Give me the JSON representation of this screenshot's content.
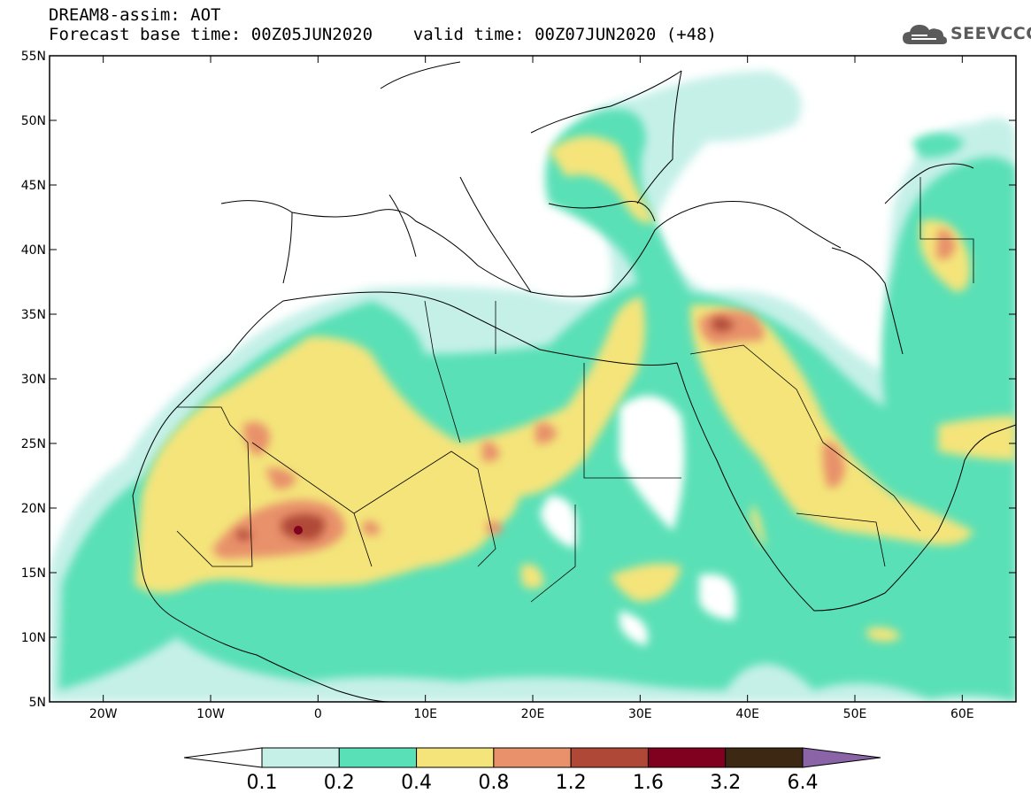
{
  "header": {
    "line1": "DREAM8-assim: AOT",
    "line2": "Forecast base time: 00Z05JUN2020    valid time: 00Z07JUN2020 (+48)"
  },
  "logo": {
    "text": "SEEVCCC",
    "icon": "cloud-icon"
  },
  "map": {
    "lon_range": [
      -25,
      65
    ],
    "lat_range": [
      5,
      55
    ],
    "lon_ticks": [
      {
        "value": -20,
        "label": "20W"
      },
      {
        "value": -10,
        "label": "10W"
      },
      {
        "value": 0,
        "label": "0"
      },
      {
        "value": 10,
        "label": "10E"
      },
      {
        "value": 20,
        "label": "20E"
      },
      {
        "value": 30,
        "label": "30E"
      },
      {
        "value": 40,
        "label": "40E"
      },
      {
        "value": 50,
        "label": "50E"
      },
      {
        "value": 60,
        "label": "60E"
      }
    ],
    "lat_ticks": [
      {
        "value": 55,
        "label": "55N"
      },
      {
        "value": 50,
        "label": "50N"
      },
      {
        "value": 45,
        "label": "45N"
      },
      {
        "value": 40,
        "label": "40N"
      },
      {
        "value": 35,
        "label": "35N"
      },
      {
        "value": 30,
        "label": "30N"
      },
      {
        "value": 25,
        "label": "25N"
      },
      {
        "value": 20,
        "label": "20N"
      },
      {
        "value": 15,
        "label": "15N"
      },
      {
        "value": 10,
        "label": "10N"
      },
      {
        "value": 5,
        "label": "5N"
      }
    ]
  },
  "colorbar": {
    "bins": [
      {
        "color": "#ffffff"
      },
      {
        "color": "#c5f0e8"
      },
      {
        "color": "#5ae0b6"
      },
      {
        "color": "#f4e47a"
      },
      {
        "color": "#e8916a"
      },
      {
        "color": "#b04838"
      },
      {
        "color": "#800020"
      },
      {
        "color": "#3d2814"
      },
      {
        "color": "#8a64a6"
      }
    ],
    "labels": [
      "0.1",
      "0.2",
      "0.4",
      "0.8",
      "1.2",
      "1.6",
      "3.2",
      "6.4"
    ]
  }
}
